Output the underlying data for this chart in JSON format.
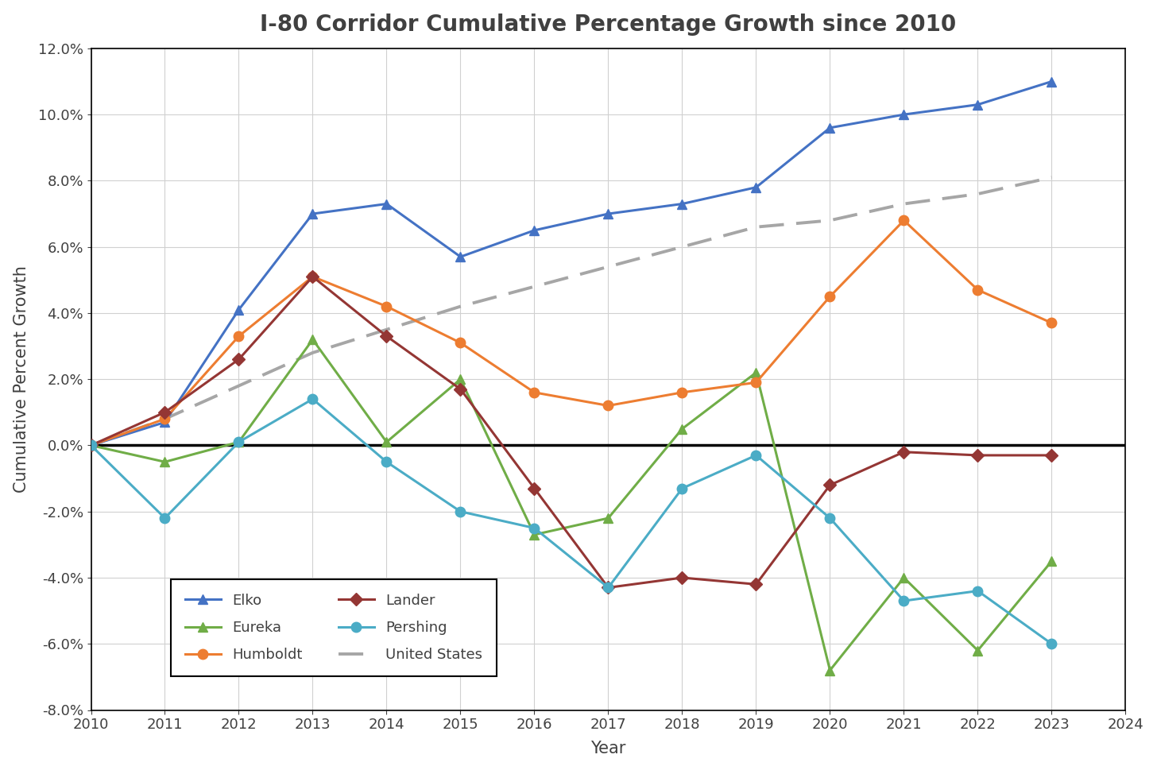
{
  "title": "I-80 Corridor Cumulative Percentage Growth since 2010",
  "xlabel": "Year",
  "ylabel": "Cumulative Percent Growth",
  "years": [
    2010,
    2011,
    2012,
    2013,
    2014,
    2015,
    2016,
    2017,
    2018,
    2019,
    2020,
    2021,
    2022,
    2023
  ],
  "elko": [
    0.0,
    0.007,
    0.041,
    0.07,
    0.073,
    0.057,
    0.065,
    0.07,
    0.073,
    0.078,
    0.096,
    0.1,
    0.103,
    0.11
  ],
  "eureka": [
    0.0,
    -0.005,
    0.001,
    0.032,
    0.001,
    0.02,
    -0.027,
    -0.022,
    0.005,
    0.022,
    -0.068,
    -0.04,
    -0.062,
    -0.035
  ],
  "humboldt": [
    0.0,
    0.008,
    0.033,
    0.051,
    0.042,
    0.031,
    0.016,
    0.012,
    0.016,
    0.019,
    0.045,
    0.068,
    0.047,
    0.037
  ],
  "lander": [
    0.0,
    0.01,
    0.026,
    0.051,
    0.033,
    0.017,
    -0.013,
    -0.043,
    -0.04,
    -0.042,
    -0.012,
    -0.002,
    -0.003,
    -0.003
  ],
  "pershing": [
    0.0,
    -0.022,
    0.001,
    0.014,
    -0.005,
    -0.02,
    -0.025,
    -0.043,
    -0.013,
    -0.003,
    -0.022,
    -0.047,
    -0.044,
    -0.06
  ],
  "us": [
    0.0,
    0.008,
    0.018,
    0.028,
    0.035,
    0.042,
    0.048,
    0.054,
    0.06,
    0.066,
    0.068,
    0.073,
    0.076,
    0.081
  ],
  "elko_color": "#4472C4",
  "eureka_color": "#70AD47",
  "humboldt_color": "#ED7D31",
  "lander_color": "#943634",
  "pershing_color": "#4BACC6",
  "us_color": "#A6A6A6",
  "ylim": [
    -0.08,
    0.12
  ],
  "xlim": [
    2010,
    2024
  ],
  "yticks": [
    -0.08,
    -0.06,
    -0.04,
    -0.02,
    0.0,
    0.02,
    0.04,
    0.06,
    0.08,
    0.1,
    0.12
  ],
  "title_fontsize": 20,
  "axis_label_fontsize": 15,
  "tick_fontsize": 13,
  "legend_fontsize": 13,
  "background_color": "#FFFFFF",
  "grid_color": "#D0D0D0"
}
